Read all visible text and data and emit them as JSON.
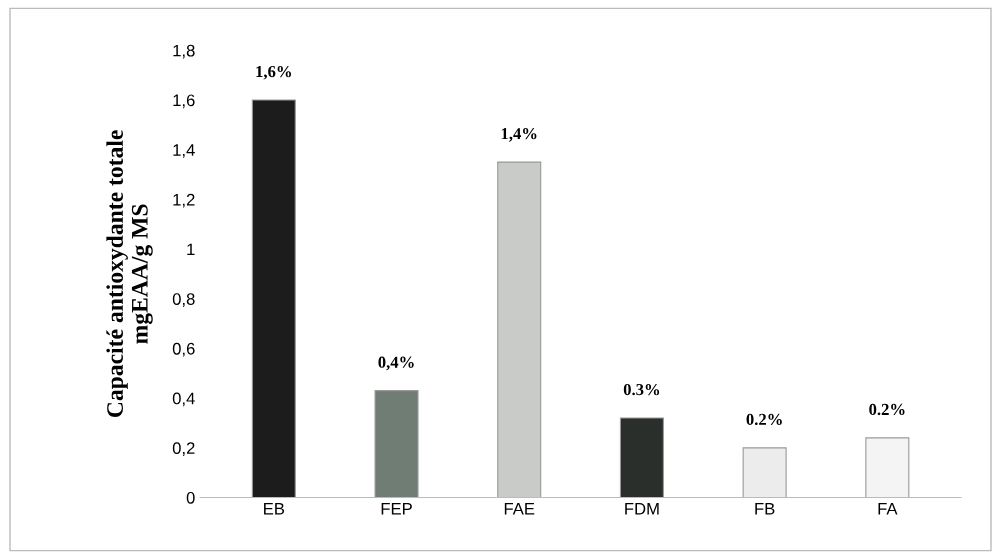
{
  "chart_data": {
    "type": "bar",
    "ylabel": "Capacité antioxydante totale\nmgEAA/g MS",
    "categories": [
      "EB",
      "FEP",
      "FAE",
      "FDM",
      "FB",
      "FA"
    ],
    "values": [
      1.6,
      0.43,
      1.35,
      0.32,
      0.2,
      0.24
    ],
    "colors": [
      "#1c1c1c",
      "#6f7d74",
      "#c9cbc9",
      "#2b2f2c",
      "#ececec",
      "#f4f4f4"
    ],
    "value_labels": [
      "1,6%",
      "0,4%",
      "1,4%",
      "0.3%",
      "0.2%",
      "0.2%"
    ],
    "ylim": [
      0,
      1.8
    ],
    "yticks": [
      0,
      {
        "value": 0.2,
        "label": "0,2"
      },
      {
        "value": 0.4,
        "label": "0,4"
      },
      {
        "value": 0.6,
        "label": "0,6"
      },
      {
        "value": 0.8,
        "label": "0,8"
      },
      1,
      {
        "value": 1.2,
        "label": "1,2"
      },
      {
        "value": 1.4,
        "label": "1,4"
      },
      {
        "value": 1.6,
        "label": "1,6"
      },
      {
        "value": 1.8,
        "label": "1,8"
      }
    ],
    "grid": false
  }
}
